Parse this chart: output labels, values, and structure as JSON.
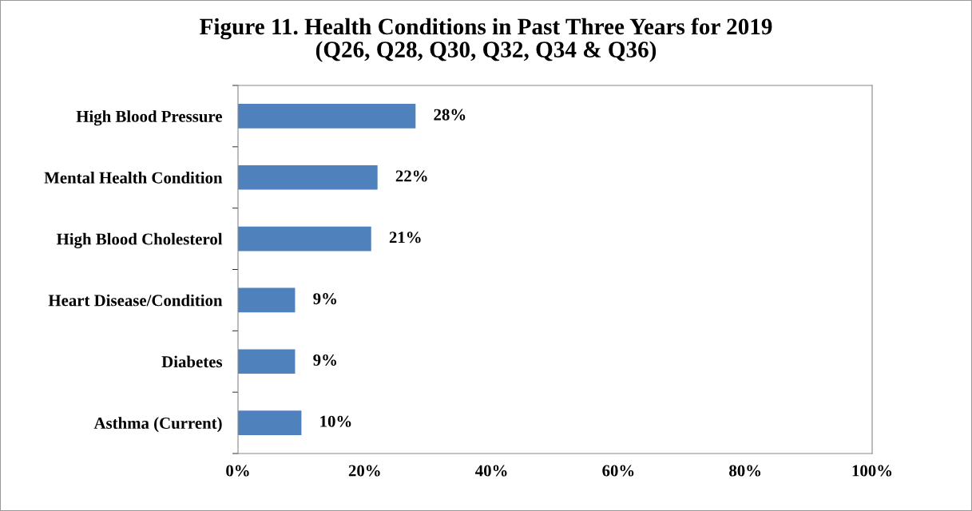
{
  "chart_data": {
    "type": "bar",
    "orientation": "horizontal",
    "title": "Figure 11. Health Conditions in Past Three Years for 2019\n(Q26, Q28, Q30, Q32, Q34 & Q36)",
    "categories": [
      "High Blood Pressure",
      "Mental Health Condition",
      "High Blood Cholesterol",
      "Heart Disease/Condition",
      "Diabetes",
      "Asthma (Current)"
    ],
    "values": [
      28,
      22,
      21,
      9,
      9,
      10
    ],
    "value_labels": [
      "28%",
      "22%",
      "21%",
      "9%",
      "9%",
      "10%"
    ],
    "color": "#4f81bd",
    "xlim": [
      0,
      100
    ],
    "xticks": [
      {
        "value": 0,
        "label": "0%"
      },
      {
        "value": 20,
        "label": "20%"
      },
      {
        "value": 40,
        "label": "40%"
      },
      {
        "value": 60,
        "label": "60%"
      },
      {
        "value": 80,
        "label": "80%"
      },
      {
        "value": 100,
        "label": "100%"
      }
    ],
    "grid": false
  }
}
